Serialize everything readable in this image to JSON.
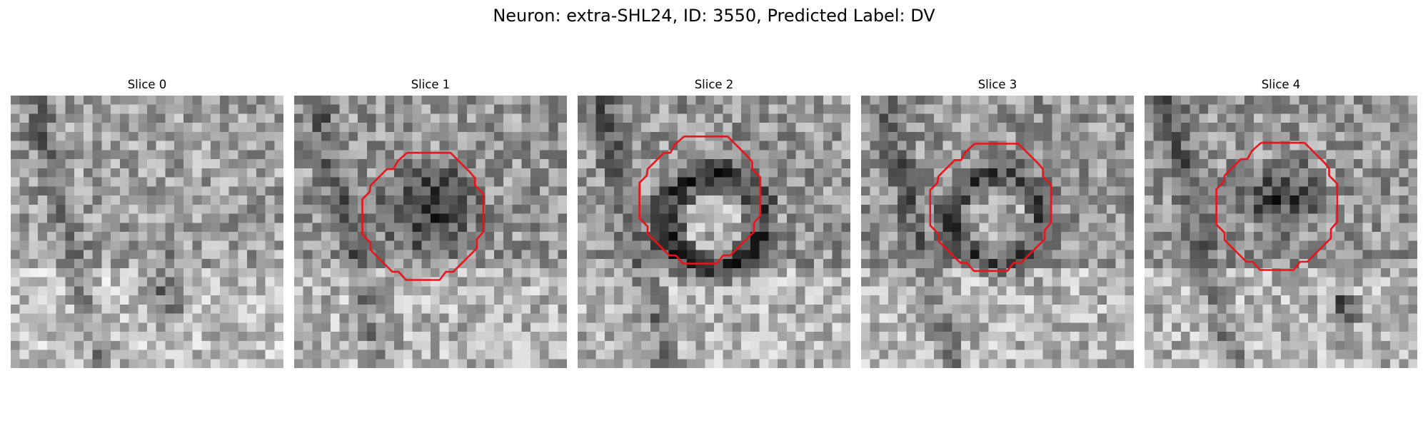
{
  "figure": {
    "title": "Neuron: extra-SHL24, ID: 3550, Predicted Label: DV"
  },
  "slices": [
    {
      "title": "Slice 0",
      "has_contour": false,
      "seed": 11,
      "blob": "side"
    },
    {
      "title": "Slice 1",
      "has_contour": true,
      "seed": 23,
      "blob": "dark"
    },
    {
      "title": "Slice 2",
      "has_contour": true,
      "seed": 37,
      "blob": "ring"
    },
    {
      "title": "Slice 3",
      "has_contour": true,
      "seed": 41,
      "blob": "ring-soft"
    },
    {
      "title": "Slice 4",
      "has_contour": true,
      "seed": 53,
      "blob": "dark-top"
    }
  ],
  "colors": {
    "contour": "#e8141c",
    "background": "#ffffff"
  }
}
